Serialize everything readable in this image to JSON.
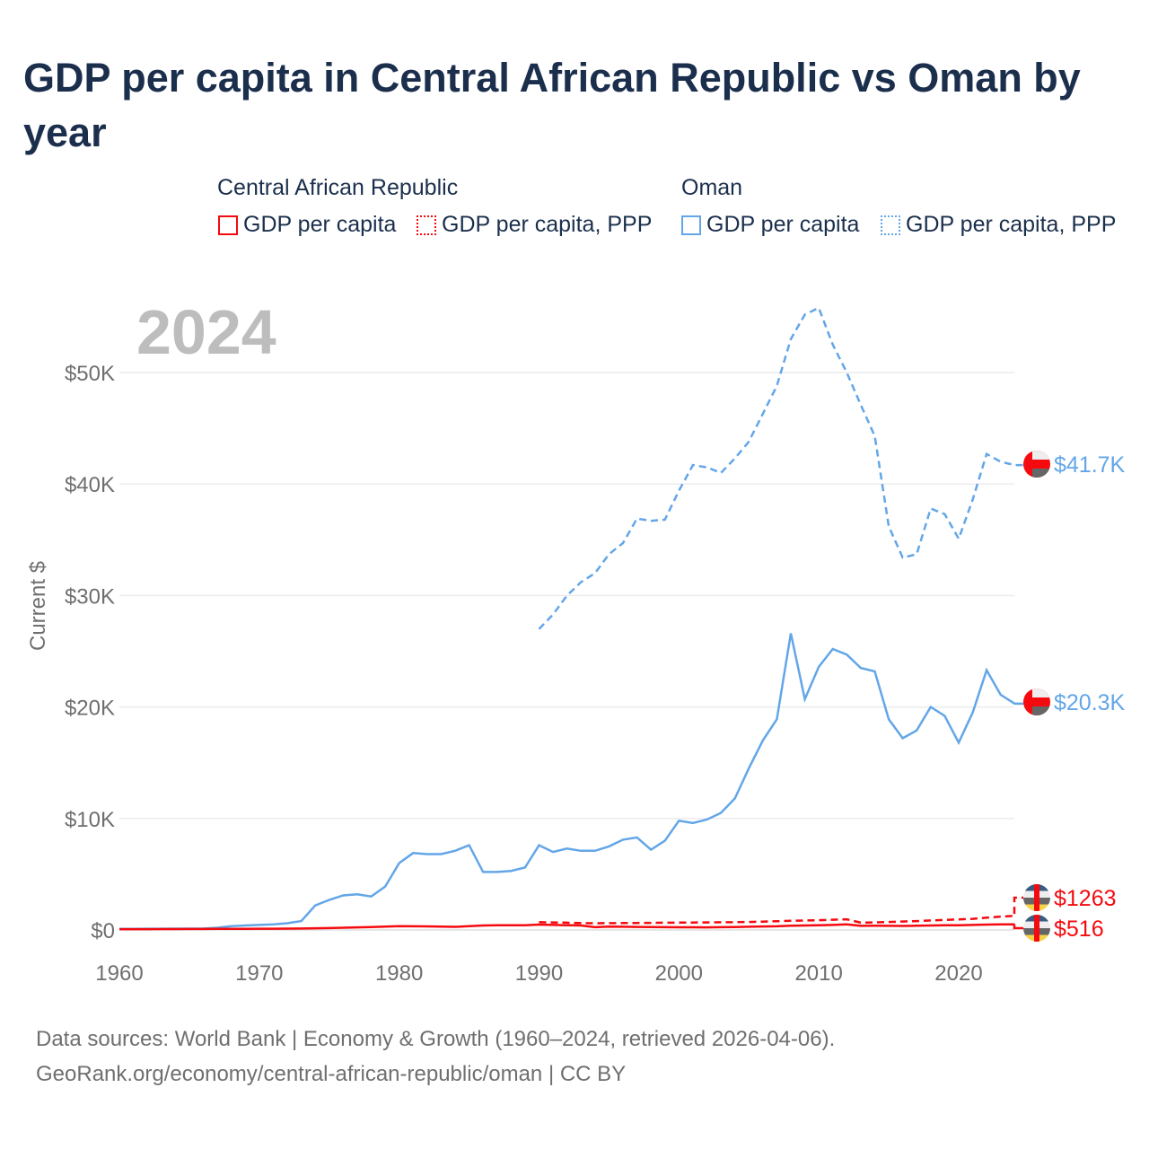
{
  "title": "GDP per capita in Central African Republic vs Oman by year",
  "legend": {
    "groups": [
      {
        "name": "Central African Republic",
        "items": [
          "GDP per capita",
          "GDP per capita, PPP"
        ],
        "color": "#f50a0f"
      },
      {
        "name": "Oman",
        "items": [
          "GDP per capita",
          "GDP per capita, PPP"
        ],
        "color": "#63a6e8"
      }
    ]
  },
  "year_label": "2024",
  "footer": {
    "line1": "Data sources: World Bank | Economy & Growth (1960–2024, retrieved 2026-04-06).",
    "line2": "GeoRank.org/economy/central-african-republic/oman | CC BY"
  },
  "chart_data": {
    "type": "line",
    "title": "GDP per capita in Central African Republic vs Oman by year",
    "ylabel": "Current $",
    "xlim": [
      1960,
      2024
    ],
    "ylim": [
      0,
      50000
    ],
    "x_ticks": [
      "1960",
      "1970",
      "1980",
      "1990",
      "2000",
      "2010",
      "2020"
    ],
    "y_ticks": [
      "$0",
      "$10K",
      "$20K",
      "$30K",
      "$40K",
      "$50K"
    ],
    "grid": true,
    "series": [
      {
        "name": "Oman GDP per capita, PPP",
        "country": "Oman",
        "color": "#63a6e8",
        "dash": true,
        "start": 1990,
        "end_label": "$41.7K",
        "values": [
          27000,
          28300,
          30000,
          31200,
          32000,
          33700,
          34700,
          36900,
          36700,
          36800,
          39400,
          41700,
          41500,
          41000,
          42300,
          43800,
          46300,
          48800,
          53000,
          55200,
          55800,
          52500,
          50000,
          47100,
          44300,
          36200,
          33400,
          33700,
          37800,
          37300,
          35100,
          38600,
          42700,
          42000,
          41700
        ]
      },
      {
        "name": "Oman GDP per capita",
        "country": "Oman",
        "color": "#63a6e8",
        "dash": false,
        "start": 1960,
        "end_label": "$20.3K",
        "values": [
          100,
          100,
          110,
          110,
          120,
          120,
          130,
          200,
          350,
          400,
          450,
          500,
          600,
          800,
          2200,
          2700,
          3100,
          3200,
          3000,
          3900,
          6000,
          6900,
          6800,
          6800,
          7100,
          7600,
          5200,
          5200,
          5300,
          5600,
          7600,
          7000,
          7300,
          7100,
          7100,
          7500,
          8100,
          8300,
          7200,
          8000,
          9800,
          9600,
          9900,
          10500,
          11800,
          14500,
          17000,
          18900,
          26600,
          20700,
          23600,
          25200,
          24700,
          23500,
          23200,
          18900,
          17200,
          17900,
          20000,
          19200,
          16800,
          19500,
          23300,
          21100,
          20300
        ]
      },
      {
        "name": "Central African Republic GDP per capita, PPP",
        "country": "CAR",
        "color": "#f50a0f",
        "dash": true,
        "start": 1990,
        "end_label": "$1263",
        "values": [
          700,
          680,
          650,
          620,
          600,
          610,
          620,
          630,
          640,
          650,
          660,
          670,
          680,
          690,
          700,
          720,
          750,
          780,
          820,
          850,
          880,
          920,
          960,
          650,
          680,
          720,
          760,
          800,
          850,
          900,
          950,
          1000,
          1100,
          1200,
          1263
        ]
      },
      {
        "name": "Central African Republic GDP per capita",
        "country": "CAR",
        "color": "#f50a0f",
        "dash": false,
        "start": 1960,
        "end_label": "$516",
        "values": [
          70,
          72,
          75,
          78,
          80,
          85,
          90,
          95,
          100,
          105,
          110,
          115,
          120,
          130,
          150,
          170,
          200,
          230,
          260,
          300,
          350,
          330,
          320,
          300,
          280,
          350,
          400,
          420,
          430,
          420,
          480,
          450,
          430,
          400,
          250,
          300,
          290,
          270,
          260,
          250,
          240,
          240,
          230,
          250,
          260,
          290,
          310,
          330,
          380,
          400,
          420,
          450,
          500,
          370,
          380,
          370,
          360,
          380,
          400,
          420,
          430,
          450,
          480,
          500,
          516
        ]
      }
    ]
  }
}
